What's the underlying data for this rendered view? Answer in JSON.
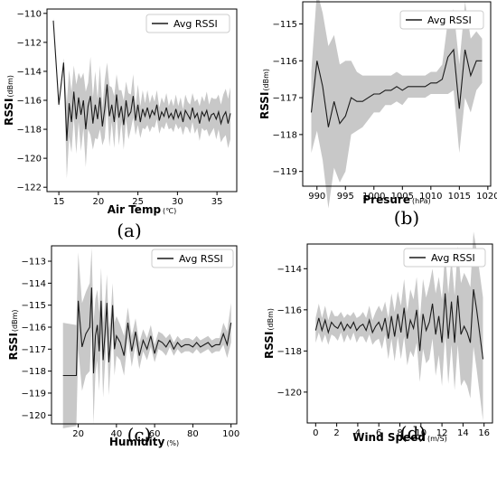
{
  "chart_data": [
    {
      "type": "line",
      "panel": "(a)",
      "xlabel": "Air Temp",
      "xunit": "(℃)",
      "ylabel": "RSSI",
      "yunit": "(dBm)",
      "xlim": [
        13.5,
        37.5
      ],
      "ylim": [
        -122.3,
        -109.7
      ],
      "xticks": [
        15,
        20,
        25,
        30,
        35
      ],
      "yticks": [
        -110,
        -112,
        -114,
        -116,
        -118,
        -120,
        -122
      ],
      "legend": "top-right",
      "series": [
        {
          "name": "Avg RSSI",
          "x": [
            14.3,
            15.0,
            15.6,
            16.0,
            16.3,
            16.6,
            16.9,
            17.2,
            17.5,
            17.8,
            18.1,
            18.4,
            18.7,
            19.0,
            19.3,
            19.6,
            19.9,
            20.2,
            20.5,
            20.8,
            21.1,
            21.4,
            21.7,
            22.0,
            22.3,
            22.6,
            22.9,
            23.2,
            23.5,
            23.8,
            24.1,
            24.4,
            24.7,
            25.0,
            25.3,
            25.6,
            25.9,
            26.2,
            26.5,
            26.8,
            27.1,
            27.4,
            27.7,
            28.0,
            28.3,
            28.6,
            28.9,
            29.2,
            29.5,
            29.8,
            30.1,
            30.4,
            30.7,
            31.0,
            31.3,
            31.6,
            31.9,
            32.2,
            32.5,
            32.8,
            33.1,
            33.4,
            33.7,
            34.0,
            34.3,
            34.6,
            34.9,
            35.2,
            35.5,
            35.8,
            36.1,
            36.4,
            36.7
          ],
          "y": [
            -110.5,
            -116.3,
            -113.4,
            -118.8,
            -116.2,
            -117.5,
            -115.4,
            -117.3,
            -115.8,
            -117.0,
            -116.0,
            -118.0,
            -116.4,
            -115.7,
            -117.6,
            -116.3,
            -117.3,
            -115.8,
            -117.8,
            -116.6,
            -114.9,
            -117.1,
            -116.3,
            -117.5,
            -115.6,
            -117.2,
            -116.4,
            -117.7,
            -116.0,
            -117.1,
            -116.8,
            -115.7,
            -117.4,
            -116.3,
            -117.5,
            -116.6,
            -117.1,
            -116.5,
            -117.2,
            -116.7,
            -117.0,
            -116.3,
            -117.4,
            -116.8,
            -117.1,
            -116.5,
            -117.2,
            -116.9,
            -117.3,
            -116.6,
            -117.2,
            -116.8,
            -117.5,
            -116.7,
            -117.0,
            -117.3,
            -116.5,
            -117.2,
            -116.9,
            -117.6,
            -116.8,
            -117.1,
            -116.7,
            -117.4,
            -117.0,
            -116.9,
            -117.3,
            -116.8,
            -117.6,
            -117.1,
            -116.8,
            -117.6,
            -116.9
          ],
          "band_width": [
            0.2,
            0.2,
            0.3,
            2.6,
            2.3,
            2.1,
            1.8,
            2.4,
            1.7,
            2.5,
            1.9,
            2.6,
            1.6,
            2.7,
            1.8,
            2.3,
            1.4,
            2.2,
            1.3,
            2.0,
            1.5,
            2.1,
            1.2,
            1.8,
            1.4,
            1.9,
            1.1,
            1.7,
            1.3,
            1.6,
            1.2,
            1.5,
            1.0,
            1.4,
            1.1,
            1.3,
            0.9,
            1.2,
            1.0,
            1.1,
            0.9,
            1.0,
            0.9,
            1.0,
            0.9,
            1.0,
            0.8,
            1.0,
            0.9,
            1.0,
            0.8,
            1.0,
            0.9,
            1.1,
            0.9,
            1.0,
            1.0,
            1.1,
            1.0,
            1.2,
            1.1,
            1.0,
            1.3,
            1.1,
            1.2,
            1.0,
            1.4,
            1.2,
            1.3,
            1.5,
            1.6,
            1.7,
            1.8
          ]
        }
      ]
    },
    {
      "type": "line",
      "panel": "(b)",
      "xlabel": "Presure",
      "xunit": "(hPa)",
      "ylabel": "RSSI",
      "yunit": "(dBm)",
      "xlim": [
        987.5,
        1020.5
      ],
      "ylim": [
        -119.4,
        -114.4
      ],
      "xticks": [
        990,
        995,
        1000,
        1005,
        1010,
        1015,
        1020
      ],
      "yticks": [
        -115,
        -116,
        -117,
        -118,
        -119
      ],
      "legend": "top-right",
      "series": [
        {
          "name": "Avg RSSI",
          "x": [
            989,
            990,
            991,
            992,
            993,
            994,
            995,
            996,
            997,
            998,
            999,
            1000,
            1001,
            1002,
            1003,
            1004,
            1005,
            1006,
            1007,
            1008,
            1009,
            1010,
            1011,
            1012,
            1013,
            1014,
            1015,
            1016,
            1017,
            1018,
            1019
          ],
          "y": [
            -117.4,
            -116.0,
            -116.7,
            -117.8,
            -117.1,
            -117.7,
            -117.5,
            -117.0,
            -117.1,
            -117.1,
            -117.0,
            -116.9,
            -116.9,
            -116.8,
            -116.8,
            -116.7,
            -116.8,
            -116.7,
            -116.7,
            -116.7,
            -116.7,
            -116.6,
            -116.6,
            -116.5,
            -115.9,
            -115.7,
            -117.3,
            -115.7,
            -116.4,
            -116.0,
            -116.0
          ],
          "band_width": [
            1.1,
            1.9,
            2.0,
            2.2,
            1.8,
            1.6,
            1.5,
            1.0,
            0.8,
            0.7,
            0.6,
            0.5,
            0.5,
            0.4,
            0.4,
            0.4,
            0.4,
            0.3,
            0.3,
            0.3,
            0.3,
            0.3,
            0.3,
            0.4,
            1.0,
            1.1,
            1.2,
            1.3,
            1.0,
            0.8,
            0.6
          ]
        }
      ]
    },
    {
      "type": "line",
      "panel": "(c)",
      "xlabel": "Humidity",
      "xunit": "(%)",
      "ylabel": "RSSI",
      "yunit": "(dBm)",
      "xlim": [
        6,
        103
      ],
      "ylim": [
        -120.4,
        -112.3
      ],
      "xticks": [
        20,
        40,
        60,
        80,
        100
      ],
      "yticks": [
        -113,
        -114,
        -115,
        -116,
        -117,
        -118,
        -119,
        -120
      ],
      "legend": "top-right",
      "series": [
        {
          "name": "Avg RSSI",
          "x": [
            12,
            19,
            20,
            22,
            24,
            26,
            27,
            28,
            29,
            30,
            31,
            32,
            33,
            34,
            35,
            36,
            37,
            38,
            39,
            40,
            42,
            44,
            46,
            48,
            50,
            52,
            54,
            56,
            58,
            60,
            62,
            64,
            66,
            68,
            70,
            72,
            74,
            76,
            78,
            80,
            82,
            84,
            86,
            88,
            90,
            92,
            94,
            96,
            98,
            100
          ],
          "y": [
            -118.2,
            -118.2,
            -114.8,
            -116.9,
            -116.3,
            -116.0,
            -114.2,
            -118.1,
            -116.4,
            -115.9,
            -117.1,
            -114.8,
            -117.5,
            -116.3,
            -114.9,
            -117.6,
            -116.6,
            -115.0,
            -117.0,
            -116.4,
            -116.7,
            -117.3,
            -115.8,
            -117.1,
            -116.2,
            -117.3,
            -116.6,
            -117.0,
            -116.4,
            -117.2,
            -116.6,
            -116.7,
            -116.9,
            -116.6,
            -117.0,
            -116.7,
            -116.9,
            -116.8,
            -116.8,
            -116.9,
            -116.7,
            -116.9,
            -116.8,
            -116.7,
            -116.9,
            -116.8,
            -116.8,
            -116.3,
            -116.8,
            -115.8
          ],
          "band_width": [
            2.4,
            2.3,
            2.2,
            2.0,
            1.9,
            2.0,
            1.8,
            2.3,
            1.7,
            1.6,
            1.8,
            1.5,
            1.7,
            1.4,
            1.3,
            1.5,
            1.1,
            1.0,
            1.2,
            0.9,
            0.8,
            0.9,
            0.7,
            0.7,
            0.6,
            0.6,
            0.5,
            0.5,
            0.5,
            0.4,
            0.4,
            0.4,
            0.4,
            0.3,
            0.3,
            0.3,
            0.3,
            0.3,
            0.3,
            0.3,
            0.3,
            0.3,
            0.3,
            0.3,
            0.3,
            0.3,
            0.3,
            0.5,
            0.6,
            0.9
          ]
        }
      ]
    },
    {
      "type": "line",
      "panel": "(d)",
      "xlabel": "Wind Speed",
      "xunit": "(m/S)",
      "ylabel": "RSSI",
      "yunit": "(dBm)",
      "xlim": [
        -0.8,
        16.8
      ],
      "ylim": [
        -121.5,
        -112.8
      ],
      "xticks": [
        0,
        2,
        4,
        6,
        8,
        10,
        12,
        14,
        16
      ],
      "yticks": [
        -114,
        -116,
        -118,
        -120
      ],
      "legend": "top-right",
      "series": [
        {
          "name": "Avg RSSI",
          "x": [
            0.0,
            0.3,
            0.6,
            0.9,
            1.2,
            1.5,
            1.8,
            2.1,
            2.4,
            2.7,
            3.0,
            3.3,
            3.6,
            3.9,
            4.2,
            4.5,
            4.8,
            5.1,
            5.4,
            5.7,
            6.0,
            6.3,
            6.6,
            6.9,
            7.2,
            7.5,
            7.8,
            8.1,
            8.4,
            8.7,
            9.0,
            9.3,
            9.6,
            9.9,
            10.2,
            10.5,
            10.8,
            11.1,
            11.4,
            11.7,
            12.0,
            12.3,
            12.6,
            12.9,
            13.2,
            13.5,
            13.8,
            14.1,
            14.4,
            14.7,
            15.0,
            15.3,
            15.9
          ],
          "y": [
            -117.0,
            -116.4,
            -117.0,
            -116.5,
            -117.1,
            -116.6,
            -116.8,
            -116.9,
            -116.6,
            -117.0,
            -116.7,
            -116.9,
            -116.6,
            -117.0,
            -116.8,
            -116.7,
            -117.0,
            -116.5,
            -117.1,
            -116.8,
            -116.6,
            -117.0,
            -116.4,
            -117.4,
            -116.3,
            -117.3,
            -116.2,
            -117.1,
            -115.9,
            -117.4,
            -116.5,
            -116.9,
            -116.0,
            -118.0,
            -116.2,
            -117.0,
            -116.6,
            -115.7,
            -117.2,
            -116.3,
            -117.6,
            -115.2,
            -117.4,
            -115.6,
            -117.6,
            -115.3,
            -117.2,
            -116.8,
            -117.1,
            -117.6,
            -115.0,
            -116.0,
            -118.4
          ],
          "band_width": [
            0.6,
            0.7,
            0.6,
            0.7,
            0.6,
            0.6,
            0.5,
            0.6,
            0.5,
            0.6,
            0.5,
            0.6,
            0.5,
            0.6,
            0.5,
            0.6,
            0.6,
            0.7,
            0.6,
            0.7,
            0.8,
            0.9,
            0.8,
            1.0,
            1.1,
            1.2,
            1.1,
            1.3,
            1.4,
            1.3,
            1.5,
            1.4,
            1.6,
            1.5,
            1.7,
            1.6,
            1.8,
            1.7,
            2.0,
            1.9,
            2.1,
            2.0,
            2.2,
            2.1,
            2.3,
            2.4,
            2.5,
            2.6,
            2.6,
            2.7,
            2.8,
            2.9,
            3.0
          ]
        }
      ]
    }
  ],
  "captions": [
    "(a)",
    "(b)",
    "(c)",
    "(d)"
  ],
  "colors": {
    "line": "#1a1a1a",
    "band": "#c8c8c8",
    "axis": "#000000",
    "background": "#ffffff"
  }
}
